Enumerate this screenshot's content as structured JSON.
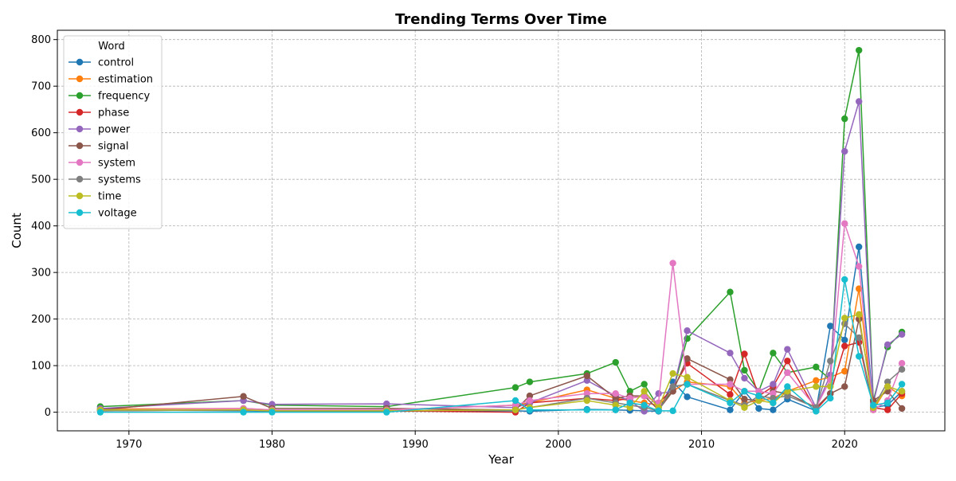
{
  "chart_data": {
    "type": "line",
    "title": "Trending Terms Over Time",
    "xlabel": "Year",
    "ylabel": "Count",
    "xlim": [
      1965,
      2027
    ],
    "ylim": [
      -40,
      820
    ],
    "xticks": [
      1970,
      1980,
      1990,
      2000,
      2010,
      2020
    ],
    "yticks": [
      0,
      100,
      200,
      300,
      400,
      500,
      600,
      700,
      800
    ],
    "grid": true,
    "legend": {
      "title": "Word",
      "placement": "top-left"
    },
    "x": [
      1968,
      1978,
      1980,
      1988,
      1997,
      1998,
      2002,
      2004,
      2005,
      2006,
      2007,
      2008,
      2009,
      2012,
      2013,
      2014,
      2015,
      2016,
      2018,
      2019,
      2020,
      2021,
      2022,
      2023,
      2024
    ],
    "series": [
      {
        "name": "control",
        "color": "#1f77b4",
        "values": [
          5,
          3,
          2,
          2,
          3,
          2,
          6,
          5,
          4,
          3,
          2,
          65,
          33,
          5,
          45,
          8,
          5,
          28,
          3,
          185,
          155,
          355,
          10,
          15,
          45
        ]
      },
      {
        "name": "estimation",
        "color": "#ff7f0e",
        "values": [
          7,
          8,
          5,
          5,
          15,
          20,
          48,
          30,
          25,
          20,
          15,
          45,
          65,
          55,
          20,
          25,
          30,
          45,
          68,
          75,
          88,
          265,
          5,
          55,
          35
        ]
      },
      {
        "name": "frequency",
        "color": "#2ca02c",
        "values": [
          12,
          25,
          15,
          12,
          53,
          65,
          83,
          107,
          45,
          60,
          10,
          45,
          158,
          258,
          90,
          45,
          127,
          85,
          97,
          70,
          630,
          777,
          25,
          140,
          172
        ]
      },
      {
        "name": "phase",
        "color": "#d62728",
        "values": [
          3,
          5,
          3,
          3,
          0,
          20,
          30,
          25,
          30,
          35,
          20,
          50,
          105,
          38,
          125,
          35,
          55,
          110,
          5,
          40,
          142,
          150,
          10,
          5,
          40
        ]
      },
      {
        "name": "power",
        "color": "#9467bd",
        "values": [
          8,
          25,
          17,
          18,
          10,
          20,
          68,
          35,
          25,
          2,
          40,
          45,
          175,
          127,
          73,
          45,
          60,
          135,
          10,
          80,
          560,
          667,
          20,
          145,
          167
        ]
      },
      {
        "name": "signal",
        "color": "#8c564b",
        "values": [
          5,
          34,
          8,
          8,
          5,
          35,
          78,
          30,
          35,
          35,
          5,
          45,
          115,
          70,
          28,
          25,
          45,
          40,
          10,
          40,
          55,
          200,
          25,
          45,
          8
        ]
      },
      {
        "name": "system",
        "color": "#e377c2",
        "values": [
          5,
          8,
          5,
          5,
          15,
          25,
          40,
          40,
          30,
          35,
          20,
          320,
          60,
          60,
          45,
          45,
          40,
          85,
          10,
          70,
          405,
          313,
          5,
          25,
          105
        ]
      },
      {
        "name": "systems",
        "color": "#7f7f7f",
        "values": [
          3,
          5,
          3,
          3,
          5,
          10,
          30,
          20,
          15,
          10,
          3,
          55,
          60,
          25,
          15,
          35,
          30,
          35,
          10,
          110,
          190,
          160,
          10,
          65,
          92
        ]
      },
      {
        "name": "time",
        "color": "#bcbd22",
        "values": [
          5,
          5,
          3,
          3,
          5,
          10,
          25,
          15,
          10,
          45,
          10,
          83,
          75,
          25,
          10,
          25,
          20,
          45,
          55,
          55,
          202,
          210,
          10,
          55,
          45
        ]
      },
      {
        "name": "voltage",
        "color": "#17becf",
        "values": [
          0,
          0,
          0,
          0,
          25,
          5,
          5,
          5,
          20,
          15,
          3,
          3,
          60,
          20,
          45,
          35,
          20,
          55,
          2,
          30,
          285,
          120,
          15,
          20,
          60
        ]
      }
    ]
  }
}
